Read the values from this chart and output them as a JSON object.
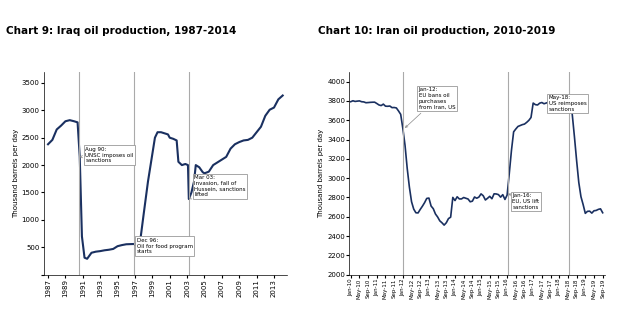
{
  "chart9": {
    "title": "Chart 9: Iraq oil production, 1987-2014",
    "ylabel": "Thousand barrels per day",
    "ylim": [
      0,
      3700
    ],
    "yticks": [
      0,
      500,
      1000,
      1500,
      2000,
      2500,
      3000,
      3500
    ],
    "xticks": [
      1987,
      1989,
      1991,
      1993,
      1995,
      1997,
      1999,
      2001,
      2003,
      2005,
      2007,
      2009,
      2011,
      2013
    ],
    "vlines": [
      1990.62,
      1996.92,
      2003.17
    ],
    "line_color": "#1a3060",
    "line_width": 1.5,
    "iraq_x": [
      1987.0,
      1987.5,
      1988.0,
      1988.5,
      1989.0,
      1989.5,
      1990.0,
      1990.4,
      1990.65,
      1990.9,
      1991.2,
      1991.5,
      1992.0,
      1992.5,
      1993.0,
      1993.5,
      1994.0,
      1994.5,
      1995.0,
      1995.5,
      1996.0,
      1996.5,
      1996.92,
      1997.2,
      1997.6,
      1998.0,
      1998.5,
      1999.0,
      1999.3,
      1999.6,
      2000.0,
      2000.4,
      2000.8,
      2001.0,
      2001.4,
      2001.8,
      2002.0,
      2002.4,
      2002.8,
      2003.1,
      2003.2,
      2003.5,
      2003.8,
      2004.0,
      2004.4,
      2004.8,
      2005.0,
      2005.5,
      2006.0,
      2006.5,
      2007.0,
      2007.5,
      2008.0,
      2008.5,
      2009.0,
      2009.5,
      2010.0,
      2010.5,
      2011.0,
      2011.5,
      2012.0,
      2012.5,
      2013.0,
      2013.5,
      2014.0
    ],
    "iraq_y": [
      2380,
      2460,
      2650,
      2720,
      2800,
      2820,
      2800,
      2780,
      2150,
      700,
      310,
      290,
      400,
      420,
      430,
      445,
      455,
      470,
      520,
      540,
      555,
      558,
      560,
      560,
      610,
      1100,
      1700,
      2200,
      2500,
      2600,
      2600,
      2580,
      2560,
      2500,
      2480,
      2450,
      2060,
      2000,
      2020,
      2000,
      1380,
      1500,
      1700,
      2000,
      1960,
      1870,
      1850,
      1880,
      2000,
      2050,
      2100,
      2150,
      2300,
      2380,
      2420,
      2450,
      2460,
      2500,
      2600,
      2700,
      2900,
      3010,
      3050,
      3200,
      3270
    ]
  },
  "chart10": {
    "title": "Chart 10: Iran oil production, 2010-2019",
    "ylabel": "Thousand barrels per day",
    "ylim": [
      2000,
      4100
    ],
    "yticks": [
      2000,
      2200,
      2400,
      2600,
      2800,
      3000,
      3200,
      3400,
      3600,
      3800,
      4000
    ],
    "vlines_x": [
      2012.0,
      2016.04,
      2018.37
    ],
    "line_color": "#1a3060",
    "line_width": 1.2
  }
}
